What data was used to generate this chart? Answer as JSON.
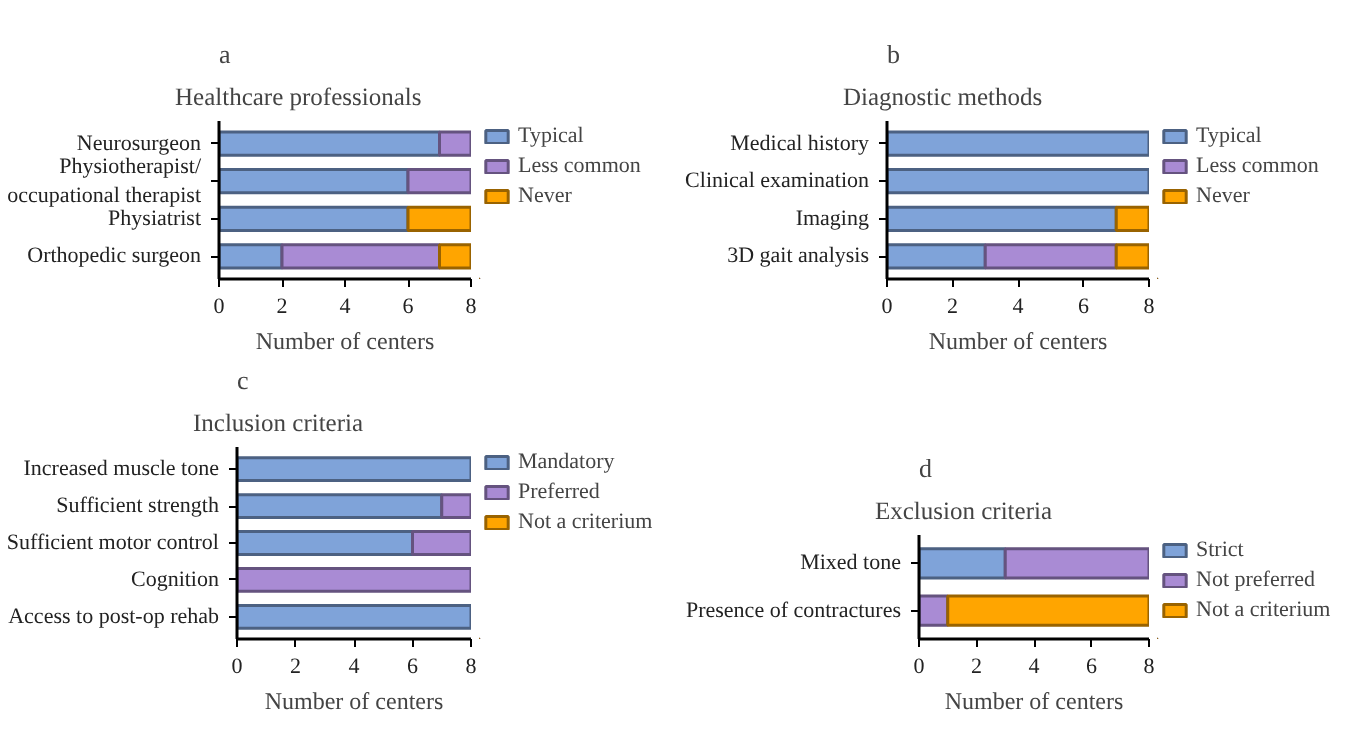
{
  "chart_data": [
    {
      "type": "bar",
      "orientation": "horizontal",
      "stacked": true,
      "title": "Healthcare professionals",
      "xlabel": "Number of centers",
      "annotations": [
        "a"
      ],
      "categories": [
        "Neurosurgeon",
        "Physiotherapist/ occupational therapist",
        "Physiatrist",
        "Orthopedic surgeon"
      ],
      "xlim": [
        0,
        8
      ],
      "xticks": [
        0,
        2,
        4,
        6,
        8
      ],
      "grid": false,
      "legend": "right",
      "series": [
        {
          "name": "Typical",
          "color": "#7fa3d9",
          "values": [
            7,
            6,
            6,
            2
          ]
        },
        {
          "name": "Less common",
          "color": "#a98bd4",
          "values": [
            1,
            2,
            0,
            5
          ]
        },
        {
          "name": "Never",
          "color": "#ffa500",
          "values": [
            0,
            0,
            2,
            1
          ]
        }
      ]
    },
    {
      "type": "bar",
      "orientation": "horizontal",
      "stacked": true,
      "title": "Diagnostic methods",
      "xlabel": "Number of centers",
      "annotations": [
        "b"
      ],
      "categories": [
        "Medical history",
        "Clinical examination",
        "Imaging",
        "3D gait analysis"
      ],
      "xlim": [
        0,
        8
      ],
      "xticks": [
        0,
        2,
        4,
        6,
        8
      ],
      "grid": false,
      "legend": "right",
      "series": [
        {
          "name": "Typical",
          "color": "#7fa3d9",
          "values": [
            8,
            8,
            7,
            3
          ]
        },
        {
          "name": "Less common",
          "color": "#a98bd4",
          "values": [
            0,
            0,
            0,
            4
          ]
        },
        {
          "name": "Never",
          "color": "#ffa500",
          "values": [
            0,
            0,
            1,
            1
          ]
        }
      ]
    },
    {
      "type": "bar",
      "orientation": "horizontal",
      "stacked": true,
      "title": "Inclusion criteria",
      "xlabel": "Number of centers",
      "annotations": [
        "c"
      ],
      "categories": [
        "Increased muscle tone",
        "Sufficient strength",
        "Sufficient motor control",
        "Cognition",
        "Access to post-op rehab"
      ],
      "xlim": [
        0,
        8
      ],
      "xticks": [
        0,
        2,
        4,
        6,
        8
      ],
      "grid": false,
      "legend": "right",
      "series": [
        {
          "name": "Mandatory",
          "color": "#7fa3d9",
          "values": [
            8,
            7,
            6,
            0,
            8
          ]
        },
        {
          "name": "Preferred",
          "color": "#a98bd4",
          "values": [
            0,
            1,
            2,
            8,
            0
          ]
        },
        {
          "name": "Not a criterium",
          "color": "#ffa500",
          "values": [
            0,
            0,
            0,
            0,
            0
          ]
        }
      ]
    },
    {
      "type": "bar",
      "orientation": "horizontal",
      "stacked": true,
      "title": "Exclusion criteria",
      "xlabel": "Number of centers",
      "annotations": [
        "d"
      ],
      "categories": [
        "Mixed tone",
        "Presence of contractures"
      ],
      "xlim": [
        0,
        8
      ],
      "xticks": [
        0,
        2,
        4,
        6,
        8
      ],
      "grid": false,
      "legend": "right",
      "series": [
        {
          "name": "Strict",
          "color": "#7fa3d9",
          "values": [
            3,
            0
          ]
        },
        {
          "name": "Not preferred",
          "color": "#a98bd4",
          "values": [
            5,
            1
          ]
        },
        {
          "name": "Not a criterium",
          "color": "#ffa500",
          "values": [
            0,
            7
          ]
        }
      ]
    }
  ]
}
